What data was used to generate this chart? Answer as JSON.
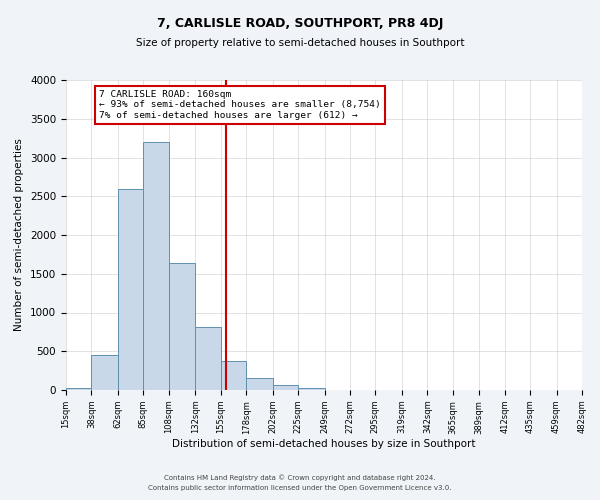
{
  "title": "7, CARLISLE ROAD, SOUTHPORT, PR8 4DJ",
  "subtitle": "Size of property relative to semi-detached houses in Southport",
  "xlabel": "Distribution of semi-detached houses by size in Southport",
  "ylabel": "Number of semi-detached properties",
  "footer_line1": "Contains HM Land Registry data © Crown copyright and database right 2024.",
  "footer_line2": "Contains public sector information licensed under the Open Government Licence v3.0.",
  "bins": [
    15,
    38,
    62,
    85,
    108,
    132,
    155,
    178,
    202,
    225,
    249,
    272,
    295,
    319,
    342,
    365,
    389,
    412,
    435,
    459,
    482
  ],
  "counts": [
    30,
    450,
    2600,
    3200,
    1640,
    810,
    380,
    155,
    70,
    20,
    5,
    2,
    1,
    0,
    0,
    0,
    0,
    0,
    0,
    0
  ],
  "bar_color": "#c8d8e8",
  "bar_edge_color": "#6090b0",
  "property_line_x": 160,
  "property_line_color": "#cc0000",
  "annotation_text_line1": "7 CARLISLE ROAD: 160sqm",
  "annotation_text_line2": "← 93% of semi-detached houses are smaller (8,754)",
  "annotation_text_line3": "7% of semi-detached houses are larger (612) →",
  "annotation_box_color": "#cc0000",
  "ylim": [
    0,
    4000
  ],
  "tick_labels": [
    "15sqm",
    "38sqm",
    "62sqm",
    "85sqm",
    "108sqm",
    "132sqm",
    "155sqm",
    "178sqm",
    "202sqm",
    "225sqm",
    "249sqm",
    "272sqm",
    "295sqm",
    "319sqm",
    "342sqm",
    "365sqm",
    "389sqm",
    "412sqm",
    "435sqm",
    "459sqm",
    "482sqm"
  ],
  "background_color": "#f0f4f8",
  "plot_background_color": "#ffffff",
  "title_fontsize": 9,
  "subtitle_fontsize": 7.5,
  "xlabel_fontsize": 7.5,
  "ylabel_fontsize": 7.5,
  "tick_fontsize": 6,
  "footer_fontsize": 5
}
